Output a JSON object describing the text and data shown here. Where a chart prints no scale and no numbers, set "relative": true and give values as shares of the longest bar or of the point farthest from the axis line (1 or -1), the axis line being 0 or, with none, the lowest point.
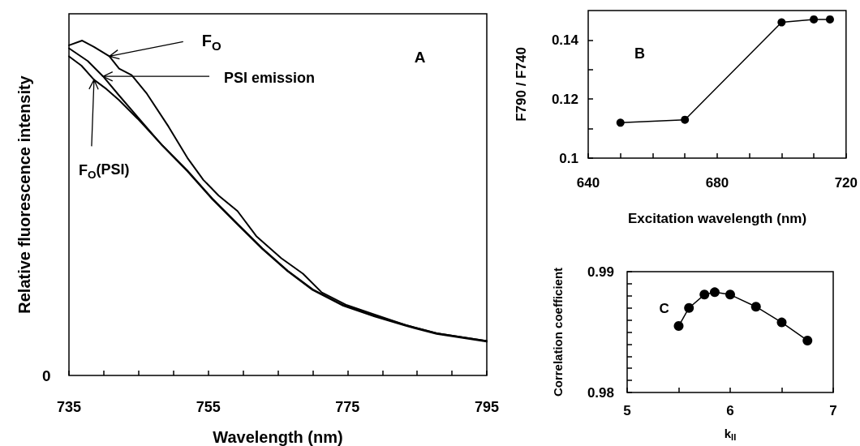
{
  "chart_data": [
    {
      "type": "line",
      "xlabel": "Wavelength (nm)",
      "ylabel": "Relative fluorescence intensity",
      "relative": true,
      "xlim": [
        735,
        795
      ],
      "xticks": [
        735,
        {
          "value": 740,
          "label": null
        },
        {
          "value": 745,
          "label": null
        },
        {
          "value": 750,
          "label": null
        },
        755,
        {
          "value": 760,
          "label": null
        },
        {
          "value": 765,
          "label": null
        },
        {
          "value": 770,
          "label": null
        },
        775,
        {
          "value": 780,
          "label": null
        },
        {
          "value": 785,
          "label": null
        },
        {
          "value": 790,
          "label": null
        },
        795
      ],
      "annotations": [
        "A",
        "0",
        {
          "text": "F$_{O}$",
          "x": 740.8,
          "y": 0.953
        },
        {
          "text": "PSI emission",
          "x": 739.9,
          "y": 0.893
        },
        {
          "text": "F$_{O}$(PSI)",
          "x": 738.6,
          "y": 0.883
        }
      ],
      "series": [
        {
          "color": "#000000",
          "x": [
            735,
            736.9,
            738.6,
            740.8,
            742.2,
            744.0,
            746.2,
            749.3,
            752.0,
            754.3,
            756.5,
            759.2,
            761.9,
            765.5,
            768.6,
            771.3,
            774.9,
            778.9,
            783.4,
            787.8,
            795
          ],
          "values": [
            0.986,
            1.0,
            0.981,
            0.953,
            0.916,
            0.897,
            0.841,
            0.743,
            0.65,
            0.584,
            0.537,
            0.491,
            0.416,
            0.35,
            0.304,
            0.248,
            0.21,
            0.182,
            0.15,
            0.126,
            0.103
          ]
        },
        {
          "color": "#000000",
          "x": [
            735,
            737.7,
            739.9,
            742.2,
            744.9,
            748.4,
            752.0,
            755.6,
            759.2,
            762.8,
            766.4,
            770.0,
            774.4,
            778.9,
            783.4,
            787.8,
            795
          ],
          "values": [
            0.977,
            0.939,
            0.893,
            0.836,
            0.771,
            0.687,
            0.612,
            0.528,
            0.453,
            0.379,
            0.313,
            0.257,
            0.21,
            0.178,
            0.15,
            0.126,
            0.103
          ]
        },
        {
          "color": "#000000",
          "x": [
            735,
            736.8,
            738.6,
            740.4,
            742.2,
            744.9,
            748.4,
            752.0,
            755.6,
            759.2,
            762.8,
            766.4,
            770.0,
            774.4,
            778.9,
            783.4,
            787.8,
            795
          ],
          "values": [
            0.953,
            0.925,
            0.883,
            0.855,
            0.822,
            0.766,
            0.687,
            0.61,
            0.526,
            0.451,
            0.377,
            0.311,
            0.255,
            0.208,
            0.176,
            0.148,
            0.124,
            0.101
          ]
        }
      ]
    },
    {
      "type": "line",
      "xlabel": "Excitation wavelength (nm)",
      "ylabel": "F790 / F740",
      "marker": "circle",
      "xlim": [
        640,
        720
      ],
      "xticks": [
        640,
        {
          "value": 650,
          "label": null
        },
        {
          "value": 660,
          "label": null
        },
        {
          "value": 670,
          "label": null
        },
        680,
        {
          "value": 690,
          "label": null
        },
        {
          "value": 700,
          "label": null
        },
        {
          "value": 710,
          "label": null
        },
        720
      ],
      "ylim": [
        0.1,
        0.15
      ],
      "yticks": [
        {
          "value": 0.1,
          "label": "0.1"
        },
        {
          "value": 0.11,
          "label": null
        },
        0.12,
        {
          "value": 0.13,
          "label": null
        },
        0.14
      ],
      "annotations": [
        "B"
      ],
      "series": [
        {
          "color": "#000000",
          "x": [
            650,
            670,
            700,
            710,
            715
          ],
          "values": [
            0.112,
            0.113,
            0.146,
            0.147,
            0.147
          ]
        }
      ]
    },
    {
      "type": "line",
      "xlabel": "k$_{II}$",
      "ylabel": "Correlation coefficient",
      "marker": "circle",
      "xlim": [
        5,
        7
      ],
      "xticks": [
        5,
        {
          "value": 5.5,
          "label": null
        },
        6,
        {
          "value": 6.5,
          "label": null
        },
        7
      ],
      "ylim": [
        0.98,
        0.99
      ],
      "yticks": [
        0.98,
        {
          "value": 0.981,
          "label": null
        },
        {
          "value": 0.982,
          "label": null
        },
        {
          "value": 0.983,
          "label": null
        },
        {
          "value": 0.984,
          "label": null
        },
        {
          "value": 0.985,
          "label": null
        },
        {
          "value": 0.986,
          "label": null
        },
        {
          "value": 0.987,
          "label": null
        },
        {
          "value": 0.988,
          "label": null
        },
        {
          "value": 0.989,
          "label": null
        },
        0.99
      ],
      "annotations": [
        "C"
      ],
      "series": [
        {
          "color": "#000000",
          "x": [
            5.5,
            5.6,
            5.75,
            5.85,
            6.0,
            6.25,
            6.5,
            6.75
          ],
          "values": [
            0.9855,
            0.987,
            0.9881,
            0.9883,
            0.9881,
            0.9871,
            0.9858,
            0.9843
          ]
        }
      ]
    }
  ]
}
